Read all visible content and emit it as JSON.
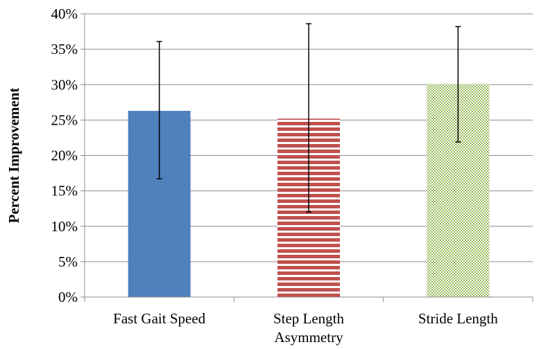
{
  "chart_data": {
    "type": "bar",
    "categories": [
      [
        "Fast Gait Speed"
      ],
      [
        "Step Length",
        "Asymmetry"
      ],
      [
        "Stride Length"
      ]
    ],
    "values": [
      26.3,
      25.2,
      30.1
    ],
    "error_low": [
      16.7,
      12.0,
      21.9
    ],
    "error_high": [
      36.1,
      38.6,
      38.2
    ],
    "bar_styles": [
      {
        "fill": "#4f81bd",
        "pattern": "solid"
      },
      {
        "fill": "#c0504d",
        "pattern": "horizontal-stripes"
      },
      {
        "fill": "#9bbb59",
        "pattern": "fine-checker"
      }
    ],
    "ylabel": "Percent Improvement",
    "xlabel": "",
    "title": "",
    "ylim": [
      0,
      40
    ],
    "yticks": [
      0,
      5,
      10,
      15,
      20,
      25,
      30,
      35,
      40
    ],
    "ytick_labels": [
      "0%",
      "5%",
      "10%",
      "15%",
      "20%",
      "25%",
      "30%",
      "35%",
      "40%"
    ],
    "grid": true,
    "legend": "none"
  }
}
